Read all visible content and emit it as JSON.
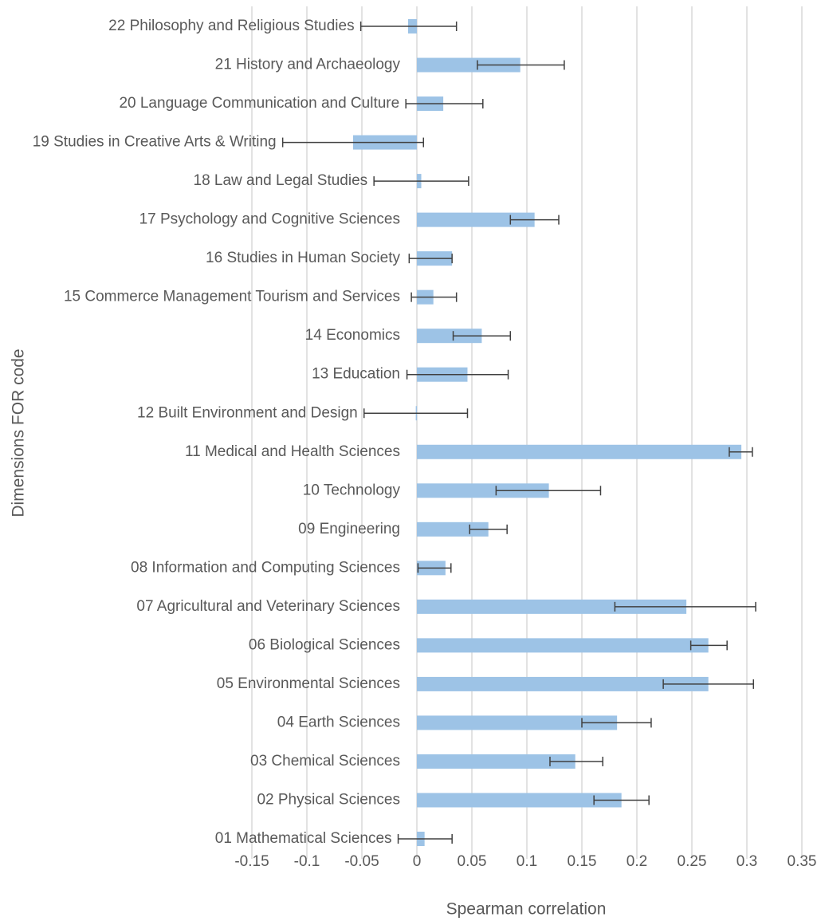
{
  "chart_data": {
    "type": "hbar_error",
    "x_label": "Spearman correlation",
    "y_label": "Dimensions FOR code",
    "categories": [
      "22 Philosophy and Religious Studies",
      "21 History and Archaeology",
      "20 Language Communication and Culture",
      "19 Studies in Creative Arts & Writing",
      "18 Law and Legal Studies",
      "17 Psychology and Cognitive Sciences",
      "16 Studies in Human Society",
      "15 Commerce Management Tourism and Services",
      "14 Economics",
      "13 Education",
      "12 Built Environment and Design",
      "11 Medical and Health Sciences",
      "10 Technology",
      "09 Engineering",
      "08 Information and Computing Sciences",
      "07 Agricultural and Veterinary Sciences",
      "06 Biological Sciences",
      "05 Environmental Sciences",
      "04 Earth Sciences",
      "03 Chemical Sciences",
      "02 Physical Sciences",
      "01 Mathematical Sciences"
    ],
    "values": [
      -0.008,
      0.094,
      0.024,
      -0.058,
      0.004,
      0.107,
      0.032,
      0.015,
      0.059,
      0.046,
      -0.001,
      0.295,
      0.12,
      0.065,
      0.026,
      0.245,
      0.265,
      0.265,
      0.182,
      0.144,
      0.186,
      0.007
    ],
    "errors_minus": [
      0.043,
      0.039,
      0.034,
      0.064,
      0.043,
      0.022,
      0.039,
      0.02,
      0.026,
      0.055,
      0.047,
      0.011,
      0.048,
      0.017,
      0.025,
      0.065,
      0.016,
      0.041,
      0.032,
      0.023,
      0.025,
      0.024
    ],
    "errors_plus": [
      0.044,
      0.04,
      0.036,
      0.064,
      0.043,
      0.022,
      0,
      0.021,
      0.026,
      0.037,
      0.047,
      0.01,
      0.047,
      0.017,
      0.005,
      0.063,
      0.017,
      0.041,
      0.031,
      0.025,
      0.025,
      0.025
    ],
    "color": "#9dc3e6",
    "error_color": "#404040",
    "xlim": [
      -0.15,
      0.35
    ],
    "xticks": [
      -0.15,
      -0.1,
      -0.05,
      0,
      0.05,
      0.1,
      0.15,
      0.2,
      0.25,
      0.3,
      0.35
    ],
    "grid": true
  }
}
